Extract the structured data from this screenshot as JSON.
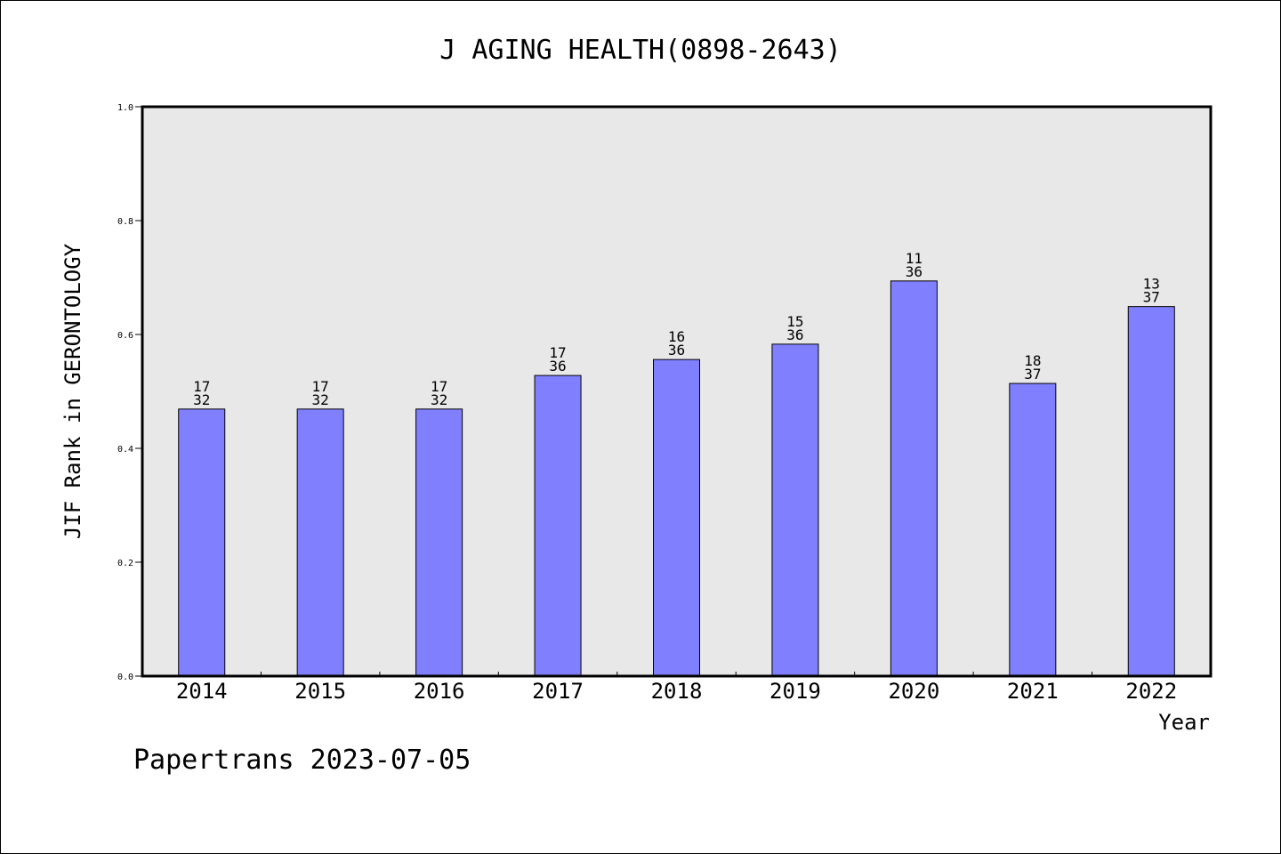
{
  "chart_data": {
    "type": "bar",
    "title": "J AGING HEALTH(0898-2643)",
    "xlabel": "Year",
    "ylabel": "JIF Rank in GERONTOLOGY",
    "ylim": [
      0.0,
      1.0
    ],
    "yticks": [
      "0.0",
      "0.2",
      "0.4",
      "0.6",
      "0.8",
      "1.0"
    ],
    "categories": [
      "2014",
      "2015",
      "2016",
      "2017",
      "2018",
      "2019",
      "2020",
      "2021",
      "2022"
    ],
    "values": [
      0.469,
      0.469,
      0.469,
      0.528,
      0.556,
      0.583,
      0.694,
      0.514,
      0.649
    ],
    "rank_labels": [
      {
        "rank": "17",
        "total": "32"
      },
      {
        "rank": "17",
        "total": "32"
      },
      {
        "rank": "17",
        "total": "32"
      },
      {
        "rank": "17",
        "total": "36"
      },
      {
        "rank": "16",
        "total": "36"
      },
      {
        "rank": "15",
        "total": "36"
      },
      {
        "rank": "11",
        "total": "36"
      },
      {
        "rank": "18",
        "total": "37"
      },
      {
        "rank": "13",
        "total": "37"
      }
    ],
    "grid": false,
    "colors": {
      "bar": "#8080ff",
      "plot_background": "#e8e8e8"
    }
  },
  "footer": {
    "text": "Papertrans 2023-07-05"
  }
}
